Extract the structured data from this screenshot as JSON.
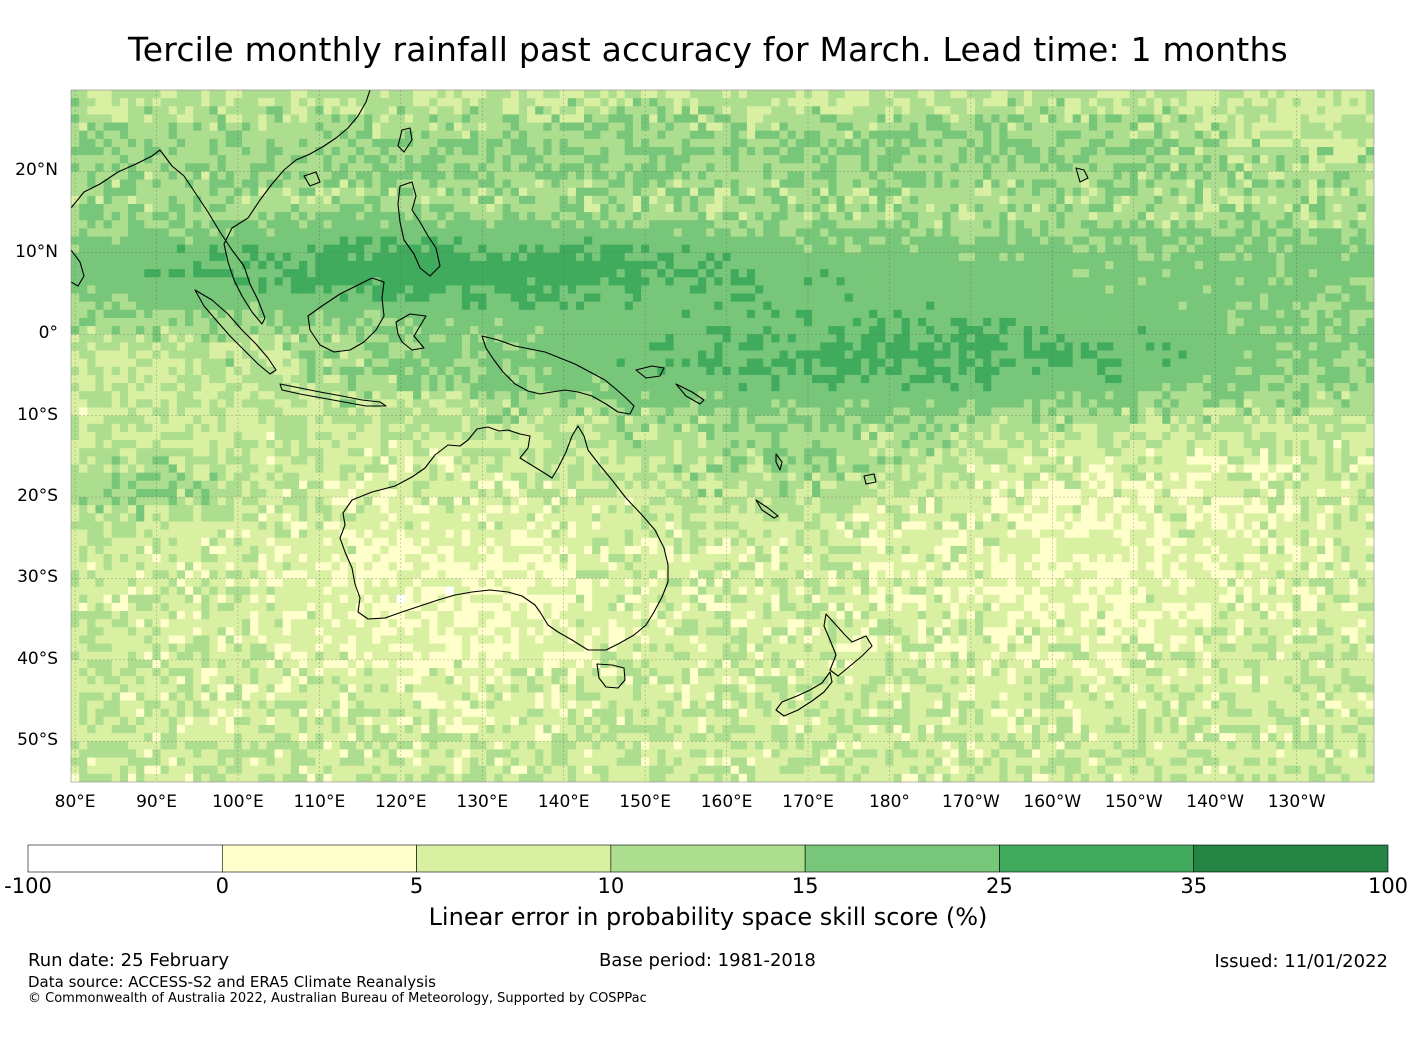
{
  "title": "Tercile monthly rainfall past accuracy for March. Lead time: 1 months",
  "map": {
    "lat_labels": [
      "20°N",
      "10°N",
      "0°",
      "10°S",
      "20°S",
      "30°S",
      "40°S",
      "50°S"
    ],
    "lat_values": [
      20,
      10,
      0,
      -10,
      -20,
      -30,
      -40,
      -50
    ],
    "lon_labels": [
      "80°E",
      "90°E",
      "100°E",
      "110°E",
      "120°E",
      "130°E",
      "140°E",
      "150°E",
      "160°E",
      "170°E",
      "180°",
      "170°W",
      "160°W",
      "150°W",
      "140°W",
      "130°W"
    ],
    "lon_values": [
      80,
      90,
      100,
      110,
      120,
      130,
      140,
      150,
      160,
      170,
      180,
      190,
      200,
      210,
      220,
      230
    ],
    "extent": {
      "lon_min": 79.5,
      "lon_max": 239.5,
      "lat_min": -55,
      "lat_max": 30
    }
  },
  "colorbar": {
    "ticks": [
      "-100",
      "0",
      "5",
      "10",
      "15",
      "25",
      "35",
      "100"
    ],
    "colors": [
      "#ffffff",
      "#ffffcc",
      "#d9f0a3",
      "#addd8e",
      "#78c679",
      "#41ab5d",
      "#238443"
    ],
    "label": "Linear error in probability space skill score (%)"
  },
  "footer": {
    "run_date": "Run date: 25 February",
    "base_period": "Base period: 1981-2018",
    "issued": "Issued: 11/01/2022",
    "data_source": "Data source: ACCESS-S2 and ERA5 Climate Reanalysis",
    "copyright": "© Commonwealth of Australia 2022, Australian Bureau of Meteorology, Supported by COSPPac"
  }
}
